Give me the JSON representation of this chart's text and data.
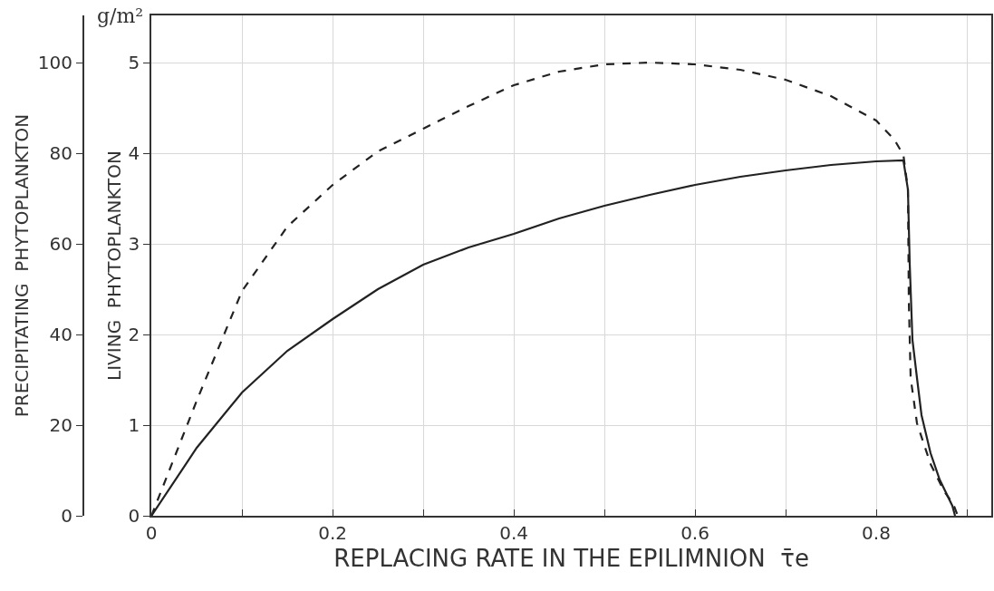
{
  "chart_data": {
    "type": "line",
    "xlabel": "REPLACING RATE IN THE EPILIMNION  τ̄e",
    "ylabel": "LIVING  PHYTOPLANKTON",
    "y2label": "PRECIPITATING  PHYTOPLANKTON",
    "annotations": [
      "g/m²"
    ],
    "xlim": [
      0,
      0.927
    ],
    "xticks": [
      0,
      {
        "value": 0.1,
        "label": null
      },
      0.2,
      {
        "value": 0.3,
        "label": null
      },
      0.4,
      {
        "value": 0.5,
        "label": null
      },
      0.6,
      {
        "value": 0.7,
        "label": null
      },
      0.8,
      {
        "value": 0.9,
        "label": null
      }
    ],
    "ylim": [
      0,
      5.52
    ],
    "yticks": [
      0,
      1,
      2,
      3,
      4,
      5
    ],
    "y2lim": [
      0,
      110.4
    ],
    "y2ticks": [
      0,
      20,
      40,
      60,
      80,
      100
    ],
    "grid": true,
    "marker": "none",
    "series": [
      {
        "color": "#222222",
        "line_style": "solid",
        "x": [
          0,
          0.05,
          0.1,
          0.15,
          0.2,
          0.25,
          0.3,
          0.35,
          0.4,
          0.45,
          0.5,
          0.55,
          0.6,
          0.65,
          0.7,
          0.75,
          0.8,
          0.83,
          0.835,
          0.837,
          0.84,
          0.845,
          0.85,
          0.86,
          0.87,
          0.884,
          0.887
        ],
        "values": [
          0,
          0.75,
          1.36,
          1.82,
          2.17,
          2.5,
          2.77,
          2.96,
          3.11,
          3.28,
          3.42,
          3.54,
          3.65,
          3.74,
          3.81,
          3.87,
          3.91,
          3.92,
          3.6,
          2.77,
          1.94,
          1.52,
          1.11,
          0.69,
          0.4,
          0.11,
          0
        ]
      },
      {
        "color": "#222222",
        "line_style": "dashed",
        "axis": "y2",
        "x": [
          0,
          0.05,
          0.1,
          0.15,
          0.2,
          0.25,
          0.3,
          0.35,
          0.4,
          0.45,
          0.5,
          0.55,
          0.6,
          0.65,
          0.7,
          0.75,
          0.8,
          0.82,
          0.83,
          0.835,
          0.836,
          0.838,
          0.845,
          0.86,
          0.875,
          0.885,
          0.89
        ],
        "values": [
          0,
          25.4,
          49.6,
          63.8,
          73,
          80.4,
          85.4,
          90.4,
          95,
          98,
          99.6,
          100,
          99.6,
          98.4,
          96.2,
          92.6,
          87.2,
          83,
          79.6,
          72,
          47.2,
          30.4,
          20.4,
          11.4,
          5.4,
          2.6,
          0
        ]
      }
    ]
  }
}
